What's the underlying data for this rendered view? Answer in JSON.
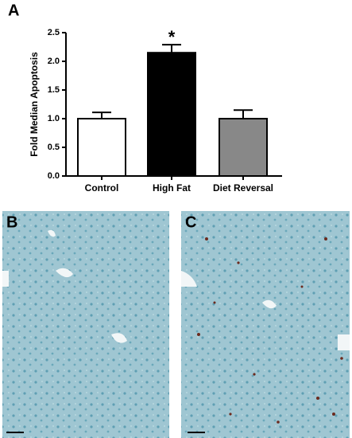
{
  "chart_data": {
    "type": "bar",
    "ylabel": "Fold Median Apoptosis",
    "categories": [
      "Control",
      "High Fat",
      "Diet Reversal"
    ],
    "values": [
      1.0,
      2.15,
      1.0
    ],
    "errors": [
      0.11,
      0.14,
      0.15
    ],
    "colors": [
      "#ffffff",
      "#000000",
      "#888888"
    ],
    "ylim": [
      0,
      2.5
    ],
    "yticks": [
      {
        "value": 0,
        "label": "0.0"
      },
      {
        "value": 0.5,
        "label": "0.5"
      },
      {
        "value": 1,
        "label": "1.0"
      },
      {
        "value": 1.5,
        "label": "1.5"
      },
      {
        "value": 2,
        "label": "2.0"
      },
      {
        "value": 2.5,
        "label": "2.5"
      }
    ],
    "annotation": "*"
  },
  "panels": {
    "a": "A",
    "b": "B",
    "c": "C"
  }
}
